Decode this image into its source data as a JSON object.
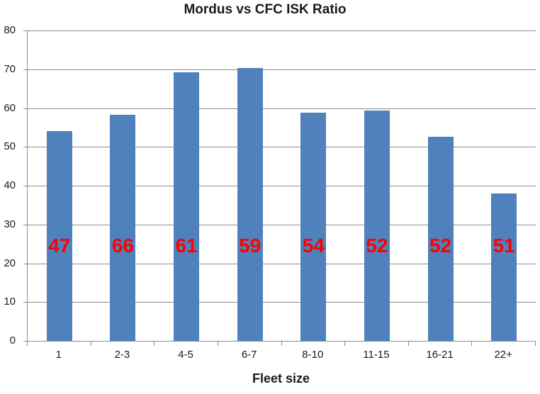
{
  "chart_data": {
    "type": "bar",
    "title": "Mordus vs CFC ISK Ratio",
    "xlabel": "Fleet size",
    "ylabel": "",
    "categories": [
      "1",
      "2-3",
      "4-5",
      "6-7",
      "8-10",
      "11-15",
      "16-21",
      "22+"
    ],
    "values": [
      54,
      58.2,
      69.2,
      70.4,
      58.8,
      59.4,
      52.6,
      38
    ],
    "bar_labels": [
      "47",
      "66",
      "61",
      "59",
      "54",
      "52",
      "52",
      "51"
    ],
    "ylim": [
      0,
      80
    ],
    "yticks": [
      0,
      10,
      20,
      30,
      40,
      50,
      60,
      70,
      80
    ],
    "grid": "horizontal",
    "legend": "none",
    "colors": {
      "bar": "#4F81BD",
      "bar_label": "#FF0000",
      "gridline": "#8C8C8C",
      "axis": "#8C8C8C",
      "text": "#1A1A1A",
      "background": "#FFFFFF"
    }
  }
}
